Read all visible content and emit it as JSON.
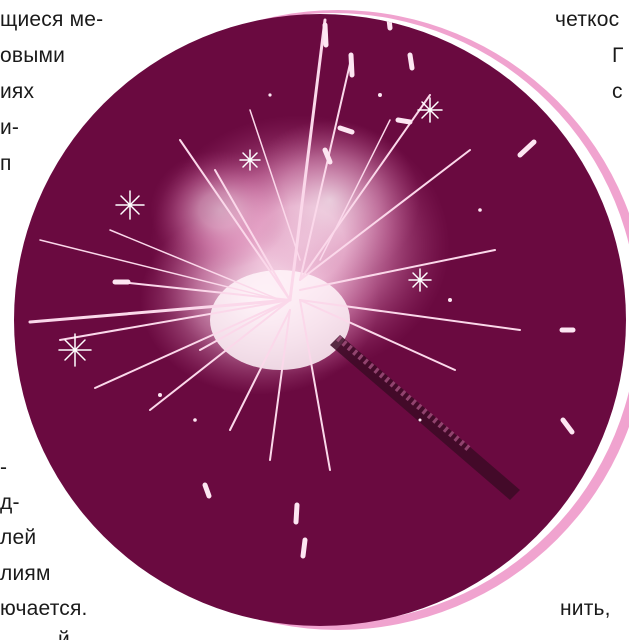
{
  "colors": {
    "page_background": "#ffffff",
    "disc": "#6a0a40",
    "ring": "#f0a3cf",
    "spark_core": "#fde6f2",
    "spark_glow": "#f2a6cf",
    "text": "#1a1a1a"
  },
  "image": {
    "subject": "sparkler-photo",
    "frame_shape": "circle-with-pink-crescent"
  },
  "left_column": {
    "top_lines": [
      "щиеся ме-",
      "овыми",
      "иях",
      "и-",
      "п"
    ],
    "bottom_lines": [
      "-",
      "д-",
      "лей",
      "лиям",
      "ючается.",
      "й"
    ]
  },
  "right_column": {
    "top_lines": [
      "четкос",
      "Г",
      "с"
    ],
    "bottom_lines": [
      "нить,"
    ]
  }
}
